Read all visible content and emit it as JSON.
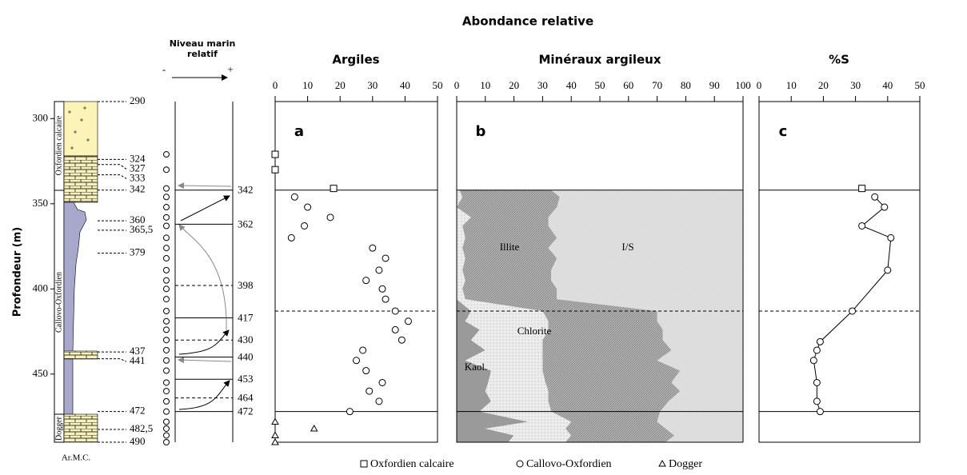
{
  "title": "Abondance relative",
  "depth_axis": {
    "label": "Profondeur (m)",
    "ylim": [
      290,
      490
    ],
    "yticks": [
      300,
      350,
      400,
      450
    ]
  },
  "lithology": {
    "formations": [
      "Oxfordien calcaire",
      "Callovo-Oxfordien",
      "Dogger"
    ],
    "depth_labels": [
      290,
      324,
      327,
      333,
      342,
      360,
      {
        "value": 365.5,
        "label": "365,5"
      },
      379,
      437,
      441,
      472,
      {
        "value": 482.5,
        "label": "482,5"
      },
      490
    ],
    "caption": "Ar.M.C."
  },
  "sea_level": {
    "title": "Niveau marin relatif",
    "minus": "-",
    "plus": "+",
    "levels": [
      342,
      362,
      398,
      417,
      430,
      440,
      453,
      464,
      472
    ],
    "dashed": [
      false,
      false,
      true,
      false,
      true,
      false,
      false,
      true,
      false
    ]
  },
  "boundaries": [
    342,
    413,
    472
  ],
  "boundary_dashed": [
    false,
    true,
    false
  ],
  "chart_data": [
    {
      "type": "scatter",
      "title": "Argiles",
      "label": "a",
      "xlim": [
        0,
        50
      ],
      "xticks": [
        0,
        10,
        20,
        30,
        40,
        50
      ],
      "series": [
        {
          "name": "Oxfordien calcaire",
          "marker": "square",
          "values": [
            0,
            0,
            18
          ],
          "depth": [
            321,
            330,
            341
          ]
        },
        {
          "name": "Callovo-Oxfordien",
          "marker": "circle",
          "values": [
            6,
            10,
            17,
            9,
            5,
            30,
            34,
            32,
            28,
            33,
            34,
            37,
            41,
            37,
            39,
            27,
            25,
            28,
            33,
            29,
            32,
            23
          ],
          "depth": [
            346,
            352,
            358,
            363,
            370,
            376,
            382,
            389,
            395,
            400,
            406,
            413,
            419,
            424,
            430,
            436,
            442,
            448,
            455,
            460,
            466,
            472
          ]
        },
        {
          "name": "Dogger",
          "marker": "triangle",
          "values": [
            0,
            12,
            0,
            0
          ],
          "depth": [
            478,
            482,
            486,
            490
          ]
        }
      ]
    },
    {
      "type": "area",
      "title": "Minéraux argileux",
      "label": "b",
      "xlim": [
        0,
        100
      ],
      "xticks": [
        0,
        10,
        20,
        30,
        40,
        50,
        60,
        70,
        80,
        90,
        100
      ],
      "depth": [
        342,
        346,
        352,
        358,
        363,
        370,
        376,
        382,
        389,
        395,
        400,
        406,
        413,
        419,
        424,
        430,
        436,
        442,
        448,
        455,
        460,
        466,
        472,
        478,
        482,
        486,
        490
      ],
      "series": [
        {
          "name": "Kaol.",
          "color": "#9a9a9a",
          "values": [
            0,
            0,
            0,
            0,
            0,
            0,
            0,
            0,
            0,
            0,
            0,
            0,
            5,
            3,
            8,
            5,
            10,
            3,
            12,
            11,
            10,
            12,
            8,
            25,
            10,
            20,
            18
          ]
        },
        {
          "name": "Chlorite",
          "color": "#ececec",
          "values": [
            1,
            2,
            0,
            5,
            2,
            3,
            2,
            3,
            2,
            3,
            2,
            3,
            25,
            29,
            24,
            25,
            20,
            27,
            18,
            20,
            22,
            20,
            25,
            15,
            28,
            20,
            20
          ]
        },
        {
          "name": "Illite",
          "color": "#a8a8a8",
          "values": [
            32,
            34,
            35,
            27,
            30,
            32,
            30,
            32,
            31,
            30,
            33,
            32,
            40,
            38,
            40,
            42,
            45,
            40,
            48,
            44,
            46,
            42,
            38,
            30,
            35,
            36,
            35
          ]
        },
        {
          "name": "I/S",
          "color": "#dedede",
          "values": [
            67,
            64,
            65,
            68,
            68,
            65,
            68,
            65,
            67,
            67,
            65,
            65,
            30,
            30,
            28,
            28,
            25,
            30,
            22,
            25,
            22,
            26,
            29,
            30,
            27,
            24,
            27
          ]
        }
      ]
    },
    {
      "type": "scatter",
      "title": "%S",
      "label": "c",
      "xlim": [
        0,
        50
      ],
      "xticks": [
        0,
        10,
        20,
        30,
        40,
        50
      ],
      "series": [
        {
          "marker": "square",
          "values": [
            32
          ],
          "depth": [
            341
          ]
        },
        {
          "marker": "circle",
          "line": true,
          "values": [
            36,
            39,
            32,
            41,
            40,
            29,
            19,
            18,
            17,
            18,
            18,
            19
          ],
          "depth": [
            346,
            352,
            363,
            370,
            389,
            413,
            431,
            436,
            442,
            455,
            466,
            472
          ]
        }
      ]
    }
  ]
}
